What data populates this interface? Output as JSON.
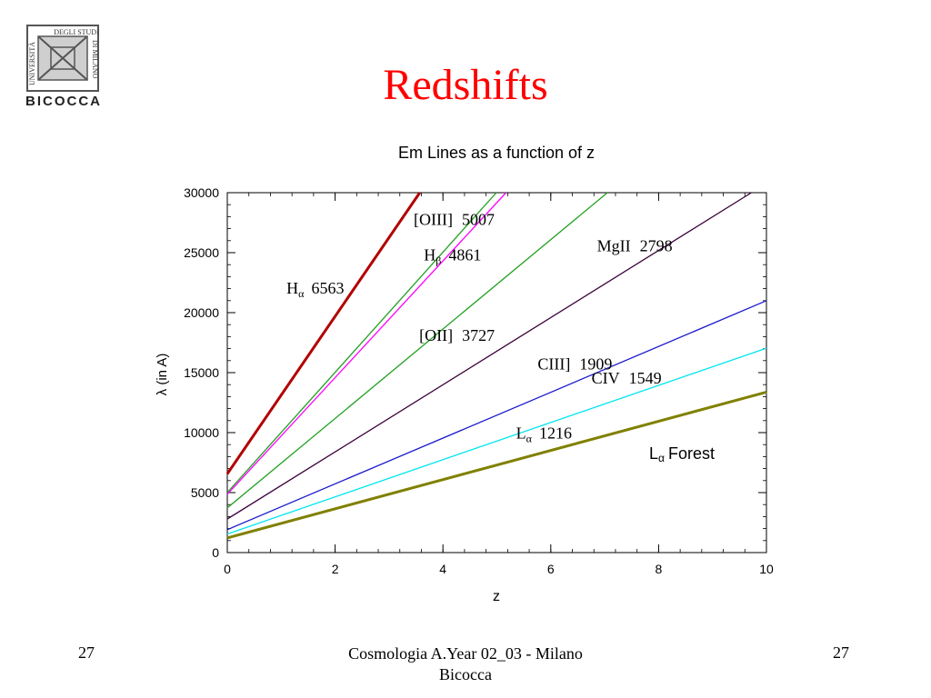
{
  "slide": {
    "title": "Redshifts",
    "page_left": "27",
    "page_right": "27",
    "footer_line1": "Cosmologia A.Year 02_03 - Milano",
    "footer_line2": "Bicocca"
  },
  "logo": {
    "text_left": "UNIVERSITÀ",
    "text_top": "DEGLI STUDI",
    "text_right": "DI MILANO",
    "text_bottom": "BICOCCA"
  },
  "colors": {
    "title": "#ff0000",
    "Halpha": "#b20000",
    "OIII": "#22a022",
    "Hbeta": "#ff00ff",
    "OII": "#22a022",
    "MgII": "#3a003a",
    "CIII": "#1a1acc",
    "CIV": "#00e5f0",
    "Lalpha": "#808000"
  },
  "chart_data": {
    "type": "line",
    "title": "Em Lines as a function of z",
    "xlabel": "z",
    "ylabel": "λ (in A)",
    "xlim": [
      0,
      10
    ],
    "ylim": [
      0,
      30000
    ],
    "x_ticks": [
      0,
      2,
      4,
      6,
      8,
      10
    ],
    "y_ticks": [
      0,
      5000,
      10000,
      15000,
      20000,
      25000,
      30000
    ],
    "series": [
      {
        "key": "Halpha",
        "rest": 6563,
        "x": [
          0,
          3.57
        ],
        "y": [
          6563,
          30000
        ],
        "label_main": "H",
        "label_sub": "α",
        "label_value": "6563",
        "label_z": 2.2,
        "label_pos": "left",
        "color_key": "Halpha"
      },
      {
        "key": "OIII",
        "rest": 5007,
        "x": [
          0,
          4.99
        ],
        "y": [
          5007,
          30000
        ],
        "label_main": "[OIII]",
        "label_sub": "",
        "label_value": "5007",
        "label_z": 4.3,
        "label_pos": "above",
        "color_key": "OIII"
      },
      {
        "key": "Hbeta",
        "rest": 4861,
        "x": [
          0,
          5.17
        ],
        "y": [
          4861,
          30000
        ],
        "label_main": "H",
        "label_sub": "β",
        "label_value": "4861",
        "label_z": 3.95,
        "label_pos": "right",
        "color_key": "Hbeta"
      },
      {
        "key": "OII",
        "rest": 3727,
        "x": [
          0,
          7.05
        ],
        "y": [
          3727,
          30000
        ],
        "label_main": "[OII]",
        "label_sub": "",
        "label_value": "3727",
        "label_z": 4.1,
        "label_pos": "below",
        "color_key": "OII"
      },
      {
        "key": "MgII",
        "rest": 2798,
        "x": [
          0,
          9.72
        ],
        "y": [
          2798,
          30000
        ],
        "label_main": "MgII",
        "label_sub": "",
        "label_value": "2798",
        "label_z": 7.7,
        "label_pos": "above",
        "color_key": "MgII"
      },
      {
        "key": "CIII",
        "rest": 1909,
        "x": [
          0,
          10
        ],
        "y": [
          1909,
          20999
        ],
        "label_main": "CIII]",
        "label_sub": "",
        "label_value": "1909",
        "label_z": 6.6,
        "label_pos": "above",
        "color_key": "CIII"
      },
      {
        "key": "CIV",
        "rest": 1549,
        "x": [
          0,
          10
        ],
        "y": [
          1549,
          17039
        ],
        "label_main": "CIV",
        "label_sub": "",
        "label_value": "1549",
        "label_z": 7.6,
        "label_pos": "above",
        "color_key": "CIV"
      },
      {
        "key": "Lalpha",
        "rest": 1216,
        "x": [
          0,
          10
        ],
        "y": [
          1216,
          13376
        ],
        "label_main": "L",
        "label_sub": "α",
        "label_value": "1216",
        "label_z": 6.2,
        "label_pos": "above",
        "color_key": "Lalpha"
      }
    ],
    "annotation": {
      "main": "L",
      "sub": "α",
      "text": "Forest"
    }
  }
}
